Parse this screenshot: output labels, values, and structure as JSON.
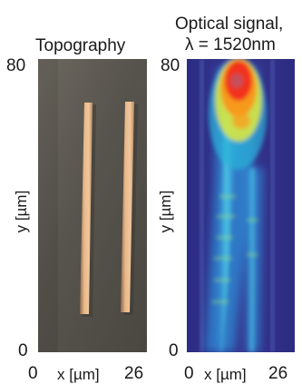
{
  "panels": [
    {
      "title_lines": [
        "Topography"
      ],
      "y_axis": {
        "label": "y [µm]",
        "max_label": "80",
        "min_label": "0"
      },
      "x_axis": {
        "label": "x [µm]",
        "min_label": "0",
        "max_label": "26"
      }
    },
    {
      "title_lines": [
        "Optical signal,",
        "λ = 1520nm"
      ],
      "y_axis": {
        "label": "y [µm]",
        "max_label": "80",
        "min_label": "0"
      },
      "x_axis": {
        "label": "x [µm]",
        "min_label": "0",
        "max_label": "26"
      }
    }
  ],
  "colors": {
    "topo_background": "#5a5650",
    "topo_ridge": "#e8b488",
    "optical_background": "#35338a",
    "optical_hot": "#f52a1c"
  }
}
